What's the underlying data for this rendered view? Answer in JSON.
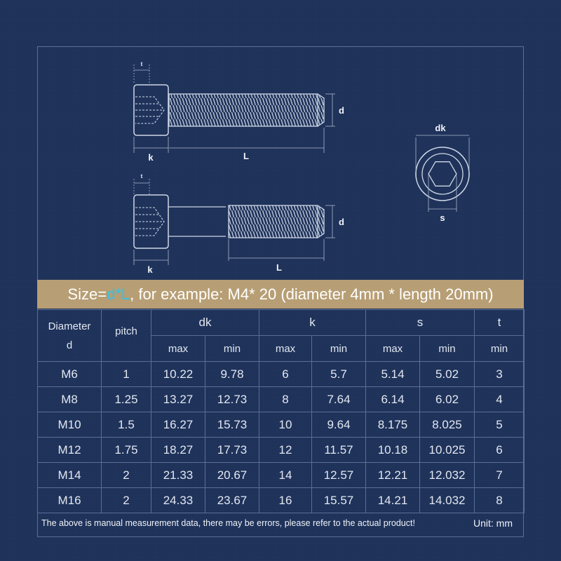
{
  "diagram": {
    "labels": {
      "t": "t",
      "k": "k",
      "L": "L",
      "d": "d",
      "dk": "dk",
      "s": "s"
    }
  },
  "banner": {
    "prefix": "Size=",
    "d": "d",
    "star": " * ",
    "L": "L",
    "rest": ", for example: M4* 20 (diameter 4mm * length 20mm)"
  },
  "table": {
    "col_diameter_top": "Diameter",
    "col_diameter_bottom": "d",
    "col_pitch": "pitch",
    "groups": [
      "dk",
      "k",
      "s",
      "t"
    ],
    "sub_headers": [
      "max",
      "min",
      "max",
      "min",
      "max",
      "min",
      "min"
    ],
    "rows": [
      [
        "M6",
        "1",
        "10.22",
        "9.78",
        "6",
        "5.7",
        "5.14",
        "5.02",
        "3"
      ],
      [
        "M8",
        "1.25",
        "13.27",
        "12.73",
        "8",
        "7.64",
        "6.14",
        "6.02",
        "4"
      ],
      [
        "M10",
        "1.5",
        "16.27",
        "15.73",
        "10",
        "9.64",
        "8.175",
        "8.025",
        "5"
      ],
      [
        "M12",
        "1.75",
        "18.27",
        "17.73",
        "12",
        "11.57",
        "10.18",
        "10.025",
        "6"
      ],
      [
        "M14",
        "2",
        "21.33",
        "20.67",
        "14",
        "12.57",
        "12.21",
        "12.032",
        "7"
      ],
      [
        "M16",
        "2",
        "24.33",
        "23.67",
        "16",
        "15.57",
        "14.21",
        "14.032",
        "8"
      ]
    ]
  },
  "footer": {
    "note": "The above is manual measurement data, there may be errors, please refer to the actual product!",
    "unit": "Unit: mm"
  },
  "colors": {
    "background": "#1d3159",
    "banner": "#b79e74",
    "highlight": "#2ec4ee",
    "grid": "#5a6f96"
  }
}
